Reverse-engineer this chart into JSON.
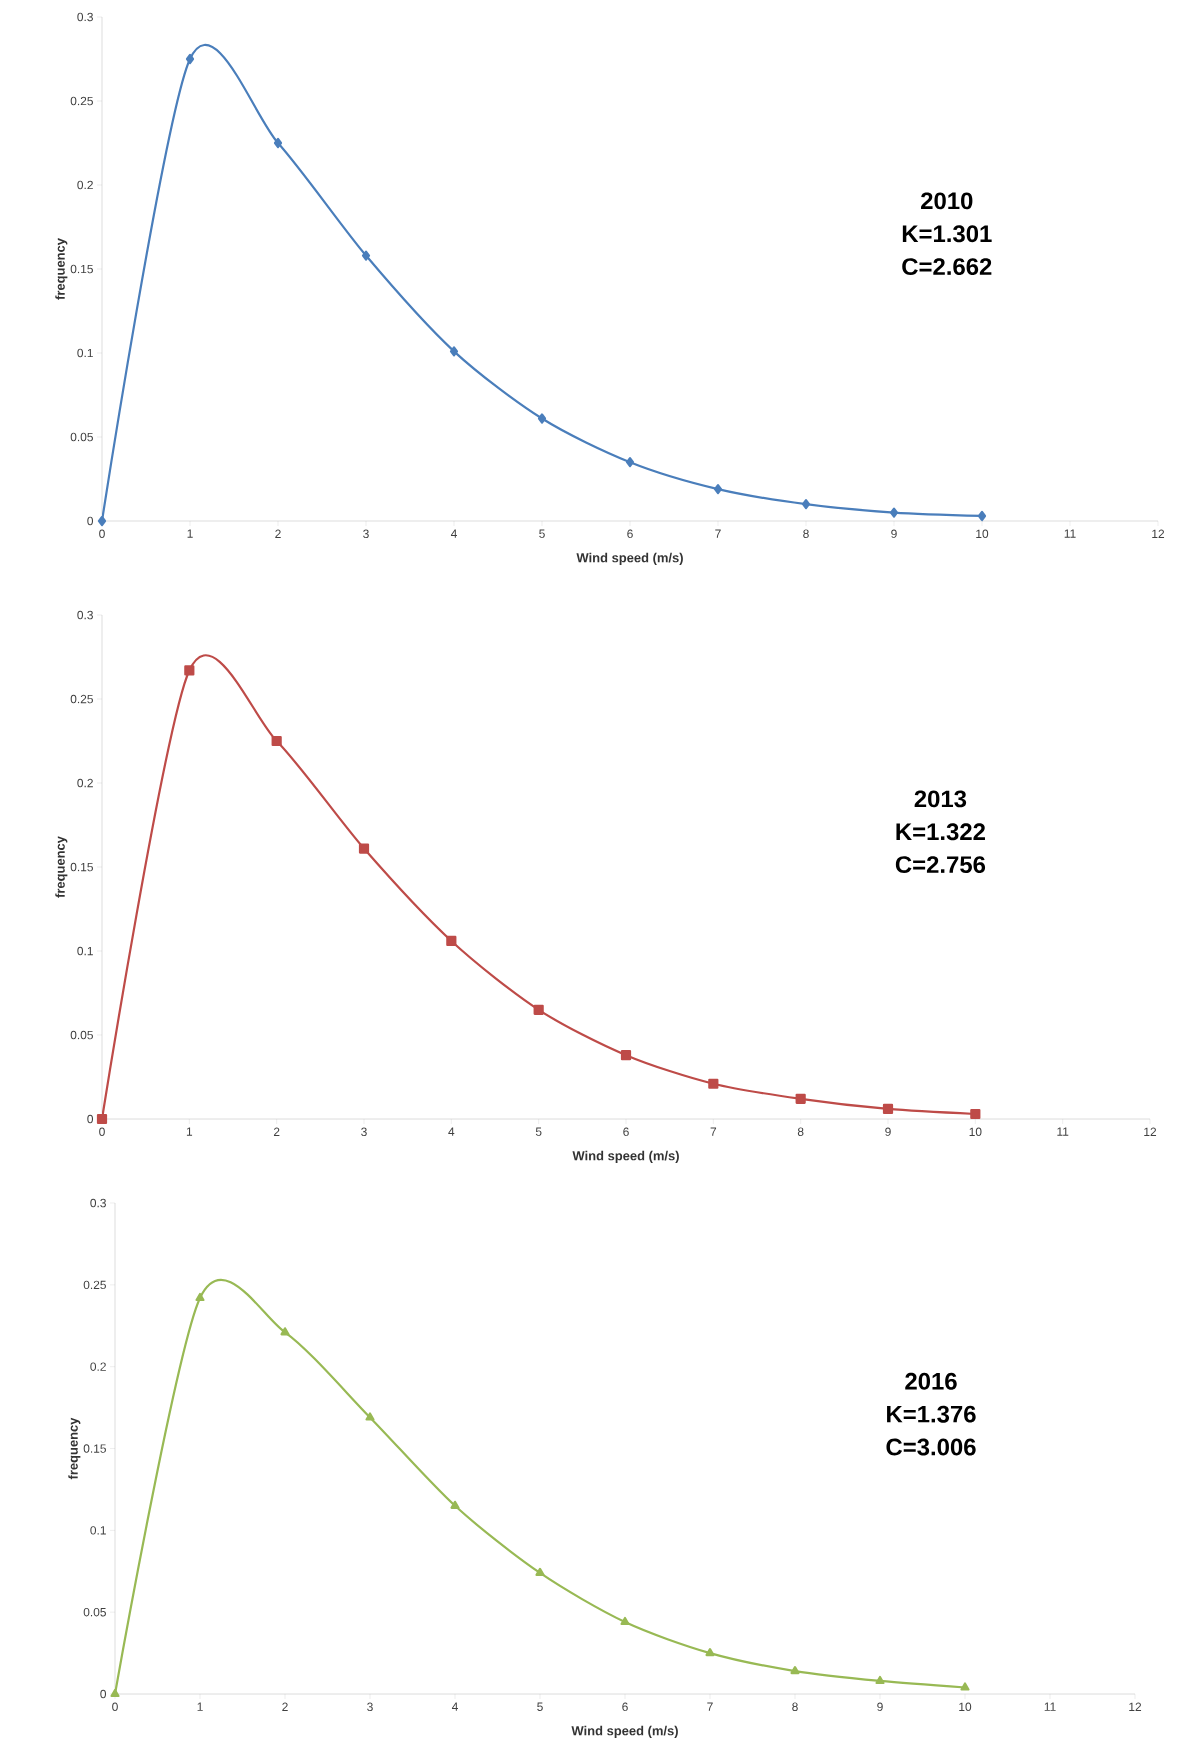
{
  "chart_data": [
    {
      "type": "line",
      "xlabel": "Wind speed (m/s)",
      "ylabel": "frequency",
      "annotations": [
        "2010",
        "K=1.301",
        "C=2.662"
      ],
      "xlim": [
        0,
        12
      ],
      "xticks": [
        0,
        1,
        2,
        3,
        4,
        5,
        6,
        7,
        8,
        9,
        10,
        11,
        12
      ],
      "ylim": [
        0,
        0.3
      ],
      "yticks": [
        0,
        0.05,
        0.1,
        0.15,
        0.2,
        0.25,
        0.3
      ],
      "marker": "diamond",
      "x": [
        0,
        1,
        2,
        3,
        4,
        5,
        6,
        7,
        8,
        9,
        10
      ],
      "series": [
        {
          "color": "#4a7ebb",
          "values": [
            0,
            0.275,
            0.225,
            0.158,
            0.101,
            0.061,
            0.035,
            0.019,
            0.01,
            0.005,
            0.003
          ]
        }
      ]
    },
    {
      "type": "line",
      "xlabel": "Wind speed (m/s)",
      "ylabel": "frequency",
      "annotations": [
        "2013",
        "K=1.322",
        "C=2.756"
      ],
      "xlim": [
        0,
        12
      ],
      "xticks": [
        0,
        1,
        2,
        3,
        4,
        5,
        6,
        7,
        8,
        9,
        10,
        11,
        12
      ],
      "ylim": [
        0,
        0.3
      ],
      "yticks": [
        0,
        0.05,
        0.1,
        0.15,
        0.2,
        0.25,
        0.3
      ],
      "marker": "square",
      "x": [
        0,
        1,
        2,
        3,
        4,
        5,
        6,
        7,
        8,
        9,
        10
      ],
      "series": [
        {
          "color": "#be4b48",
          "values": [
            0,
            0.267,
            0.225,
            0.161,
            0.106,
            0.065,
            0.038,
            0.021,
            0.012,
            0.006,
            0.003
          ]
        }
      ]
    },
    {
      "type": "line",
      "xlabel": "Wind speed (m/s)",
      "ylabel": "frequency",
      "annotations": [
        "2016",
        "K=1.376",
        "C=3.006"
      ],
      "xlim": [
        0,
        12
      ],
      "xticks": [
        0,
        1,
        2,
        3,
        4,
        5,
        6,
        7,
        8,
        9,
        10,
        11,
        12
      ],
      "ylim": [
        0,
        0.3
      ],
      "yticks": [
        0,
        0.05,
        0.1,
        0.15,
        0.2,
        0.25,
        0.3
      ],
      "marker": "triangle",
      "x": [
        0,
        1,
        2,
        3,
        4,
        5,
        6,
        7,
        8,
        9,
        10
      ],
      "series": [
        {
          "color": "#98b954",
          "values": [
            0,
            0.242,
            0.221,
            0.169,
            0.115,
            0.074,
            0.044,
            0.025,
            0.014,
            0.008,
            0.004
          ]
        }
      ]
    }
  ]
}
